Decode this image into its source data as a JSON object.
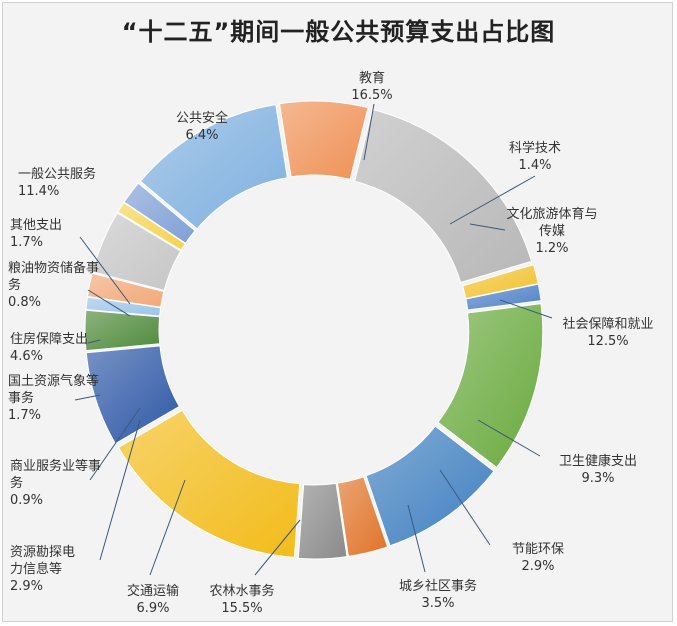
{
  "chart_data": {
    "type": "doughnut",
    "title": "“十二五”期间一般公共预算支出占比图",
    "legend": "none",
    "slices": [
      {
        "name": "教育",
        "value": 16.5,
        "label": "16.5%",
        "color": "#b8b8b8"
      },
      {
        "name": "科学技术",
        "value": 1.4,
        "label": "1.4%",
        "color": "#f2c230"
      },
      {
        "name": "文化旅游体育与传媒",
        "value": 1.2,
        "label": "1.2%",
        "color": "#4f81c7"
      },
      {
        "name": "社会保障和就业",
        "value": 12.5,
        "label": "12.5%",
        "color": "#6aaa3e"
      },
      {
        "name": "卫生健康支出",
        "value": 9.3,
        "label": "9.3%",
        "color": "#3f7fc0"
      },
      {
        "name": "节能环保",
        "value": 2.9,
        "label": "2.9%",
        "color": "#e07328"
      },
      {
        "name": "城乡社区事务",
        "value": 3.5,
        "label": "3.5%",
        "color": "#8a8a8a"
      },
      {
        "name": "农林水事务",
        "value": 15.5,
        "label": "15.5%",
        "color": "#f2bc1a"
      },
      {
        "name": "交通运输",
        "value": 6.9,
        "label": "6.9%",
        "color": "#2e58a6"
      },
      {
        "name": "资源勘探电力信息等",
        "value": 2.9,
        "label": "2.9%",
        "color": "#4e8a3a"
      },
      {
        "name": "商业服务业等事务",
        "value": 0.9,
        "label": "0.9%",
        "color": "#9cc4e8"
      },
      {
        "name": "国土资源气象等事务",
        "value": 1.7,
        "label": "1.7%",
        "color": "#f3a877"
      },
      {
        "name": "住房保障支出",
        "value": 4.6,
        "label": "4.6%",
        "color": "#c6c6c6"
      },
      {
        "name": "粮油物资储备事务",
        "value": 0.8,
        "label": "0.8%",
        "color": "#f5d250"
      },
      {
        "name": "其他支出",
        "value": 1.7,
        "label": "1.7%",
        "color": "#7f9fd6"
      },
      {
        "name": "一般公共服务",
        "value": 11.4,
        "label": "11.4%",
        "color": "#7fb0df"
      },
      {
        "name": "公共安全",
        "value": 6.4,
        "label": "6.4%",
        "color": "#ef9155"
      }
    ]
  }
}
